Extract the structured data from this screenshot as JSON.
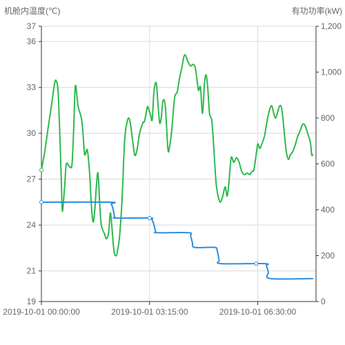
{
  "chart_data": {
    "type": "line",
    "y_left": {
      "label": "机舱内温度(℃)",
      "ticks": [
        "37",
        "36",
        "33",
        "30",
        "27",
        "24",
        "21",
        "19"
      ],
      "tick_values": [
        37,
        36,
        33,
        30,
        27,
        24,
        21,
        19
      ],
      "range": [
        19,
        37
      ]
    },
    "y_right": {
      "label": "有功功率(kW)",
      "ticks": [
        "1,200",
        "1,000",
        "800",
        "600",
        "400",
        "200",
        "0"
      ],
      "tick_values": [
        1200,
        1000,
        800,
        600,
        400,
        200,
        0
      ],
      "range": [
        0,
        1200
      ]
    },
    "x_axis": {
      "ticks": [
        "2019-10-01 00:00:00",
        "2019-10-01 03:15:00",
        "2019-10-01 06:30:00"
      ],
      "tick_hours": [
        0,
        3.25,
        6.5
      ],
      "range_hours": [
        0,
        8.25
      ]
    },
    "series": [
      {
        "name": "",
        "axis": "left",
        "color": "#2db84d",
        "points": [
          [
            0.0,
            27.6
          ],
          [
            0.1,
            28.8
          ],
          [
            0.2,
            30.3
          ],
          [
            0.3,
            31.8
          ],
          [
            0.4,
            33.3
          ],
          [
            0.45,
            33.4
          ],
          [
            0.5,
            32.8
          ],
          [
            0.55,
            30.2
          ],
          [
            0.6,
            26.8
          ],
          [
            0.63,
            24.9
          ],
          [
            0.7,
            26.6
          ],
          [
            0.75,
            28.0
          ],
          [
            0.85,
            27.8
          ],
          [
            0.92,
            28.0
          ],
          [
            0.97,
            30.3
          ],
          [
            1.02,
            33.1
          ],
          [
            1.1,
            31.8
          ],
          [
            1.2,
            31.0
          ],
          [
            1.25,
            30.0
          ],
          [
            1.3,
            28.6
          ],
          [
            1.38,
            28.9
          ],
          [
            1.45,
            27.3
          ],
          [
            1.5,
            25.3
          ],
          [
            1.55,
            24.2
          ],
          [
            1.6,
            24.9
          ],
          [
            1.65,
            26.5
          ],
          [
            1.7,
            27.4
          ],
          [
            1.75,
            25.5
          ],
          [
            1.8,
            24.0
          ],
          [
            1.9,
            23.4
          ],
          [
            1.95,
            23.1
          ],
          [
            2.02,
            23.5
          ],
          [
            2.07,
            24.8
          ],
          [
            2.12,
            23.8
          ],
          [
            2.18,
            22.3
          ],
          [
            2.25,
            22.0
          ],
          [
            2.3,
            22.5
          ],
          [
            2.35,
            23.3
          ],
          [
            2.42,
            25.5
          ],
          [
            2.5,
            29.5
          ],
          [
            2.58,
            30.8
          ],
          [
            2.65,
            30.9
          ],
          [
            2.72,
            29.9
          ],
          [
            2.8,
            28.6
          ],
          [
            2.87,
            28.9
          ],
          [
            2.95,
            30.0
          ],
          [
            3.05,
            30.7
          ],
          [
            3.1,
            30.8
          ],
          [
            3.18,
            31.7
          ],
          [
            3.22,
            31.6
          ],
          [
            3.28,
            31.2
          ],
          [
            3.33,
            30.9
          ],
          [
            3.38,
            32.7
          ],
          [
            3.45,
            33.3
          ],
          [
            3.5,
            32.0
          ],
          [
            3.55,
            30.7
          ],
          [
            3.6,
            31.0
          ],
          [
            3.65,
            32.1
          ],
          [
            3.72,
            31.8
          ],
          [
            3.8,
            29.0
          ],
          [
            3.85,
            29.1
          ],
          [
            3.92,
            30.3
          ],
          [
            4.0,
            32.3
          ],
          [
            4.08,
            32.7
          ],
          [
            4.15,
            33.6
          ],
          [
            4.22,
            34.3
          ],
          [
            4.28,
            35.0
          ],
          [
            4.33,
            35.1
          ],
          [
            4.4,
            34.7
          ],
          [
            4.48,
            34.4
          ],
          [
            4.55,
            34.5
          ],
          [
            4.62,
            34.3
          ],
          [
            4.68,
            33.4
          ],
          [
            4.72,
            32.8
          ],
          [
            4.78,
            33.0
          ],
          [
            4.84,
            31.3
          ],
          [
            4.9,
            33.3
          ],
          [
            4.95,
            33.8
          ],
          [
            5.0,
            32.9
          ],
          [
            5.05,
            31.3
          ],
          [
            5.12,
            30.8
          ],
          [
            5.18,
            29.0
          ],
          [
            5.25,
            26.7
          ],
          [
            5.32,
            25.8
          ],
          [
            5.38,
            25.5
          ],
          [
            5.45,
            25.9
          ],
          [
            5.52,
            26.5
          ],
          [
            5.58,
            25.9
          ],
          [
            5.63,
            26.7
          ],
          [
            5.7,
            28.4
          ],
          [
            5.78,
            28.1
          ],
          [
            5.86,
            28.4
          ],
          [
            5.94,
            28.1
          ],
          [
            6.02,
            27.5
          ],
          [
            6.1,
            27.3
          ],
          [
            6.18,
            27.4
          ],
          [
            6.26,
            27.3
          ],
          [
            6.32,
            27.5
          ],
          [
            6.38,
            27.6
          ],
          [
            6.44,
            28.4
          ],
          [
            6.5,
            29.3
          ],
          [
            6.56,
            29.0
          ],
          [
            6.62,
            29.3
          ],
          [
            6.7,
            29.8
          ],
          [
            6.78,
            30.8
          ],
          [
            6.85,
            31.5
          ],
          [
            6.92,
            31.8
          ],
          [
            6.98,
            31.3
          ],
          [
            7.04,
            31.0
          ],
          [
            7.1,
            31.4
          ],
          [
            7.16,
            31.8
          ],
          [
            7.22,
            31.6
          ],
          [
            7.28,
            30.4
          ],
          [
            7.35,
            28.9
          ],
          [
            7.42,
            28.3
          ],
          [
            7.48,
            28.6
          ],
          [
            7.55,
            28.8
          ],
          [
            7.62,
            29.2
          ],
          [
            7.7,
            29.8
          ],
          [
            7.78,
            30.2
          ],
          [
            7.85,
            30.6
          ],
          [
            7.92,
            30.5
          ],
          [
            8.0,
            30.0
          ],
          [
            8.08,
            29.4
          ],
          [
            8.12,
            28.6
          ],
          [
            8.15,
            28.6
          ]
        ]
      },
      {
        "name": "",
        "axis": "right",
        "color": "#2a8de0",
        "points": [
          [
            0.0,
            433
          ],
          [
            2.05,
            433
          ],
          [
            2.1,
            425
          ],
          [
            2.15,
            405
          ],
          [
            2.2,
            370
          ],
          [
            2.25,
            364
          ],
          [
            3.25,
            364
          ],
          [
            3.32,
            357
          ],
          [
            3.38,
            335
          ],
          [
            3.43,
            306
          ],
          [
            3.48,
            300
          ],
          [
            4.42,
            300
          ],
          [
            4.48,
            287
          ],
          [
            4.54,
            255
          ],
          [
            4.6,
            236
          ],
          [
            5.2,
            236
          ],
          [
            5.28,
            223
          ],
          [
            5.34,
            180
          ],
          [
            5.4,
            165
          ],
          [
            6.7,
            165
          ],
          [
            6.76,
            156
          ],
          [
            6.82,
            128
          ],
          [
            6.88,
            100
          ],
          [
            8.15,
            100
          ]
        ],
        "markers": [
          0.0,
          3.25,
          6.45
        ]
      }
    ]
  }
}
